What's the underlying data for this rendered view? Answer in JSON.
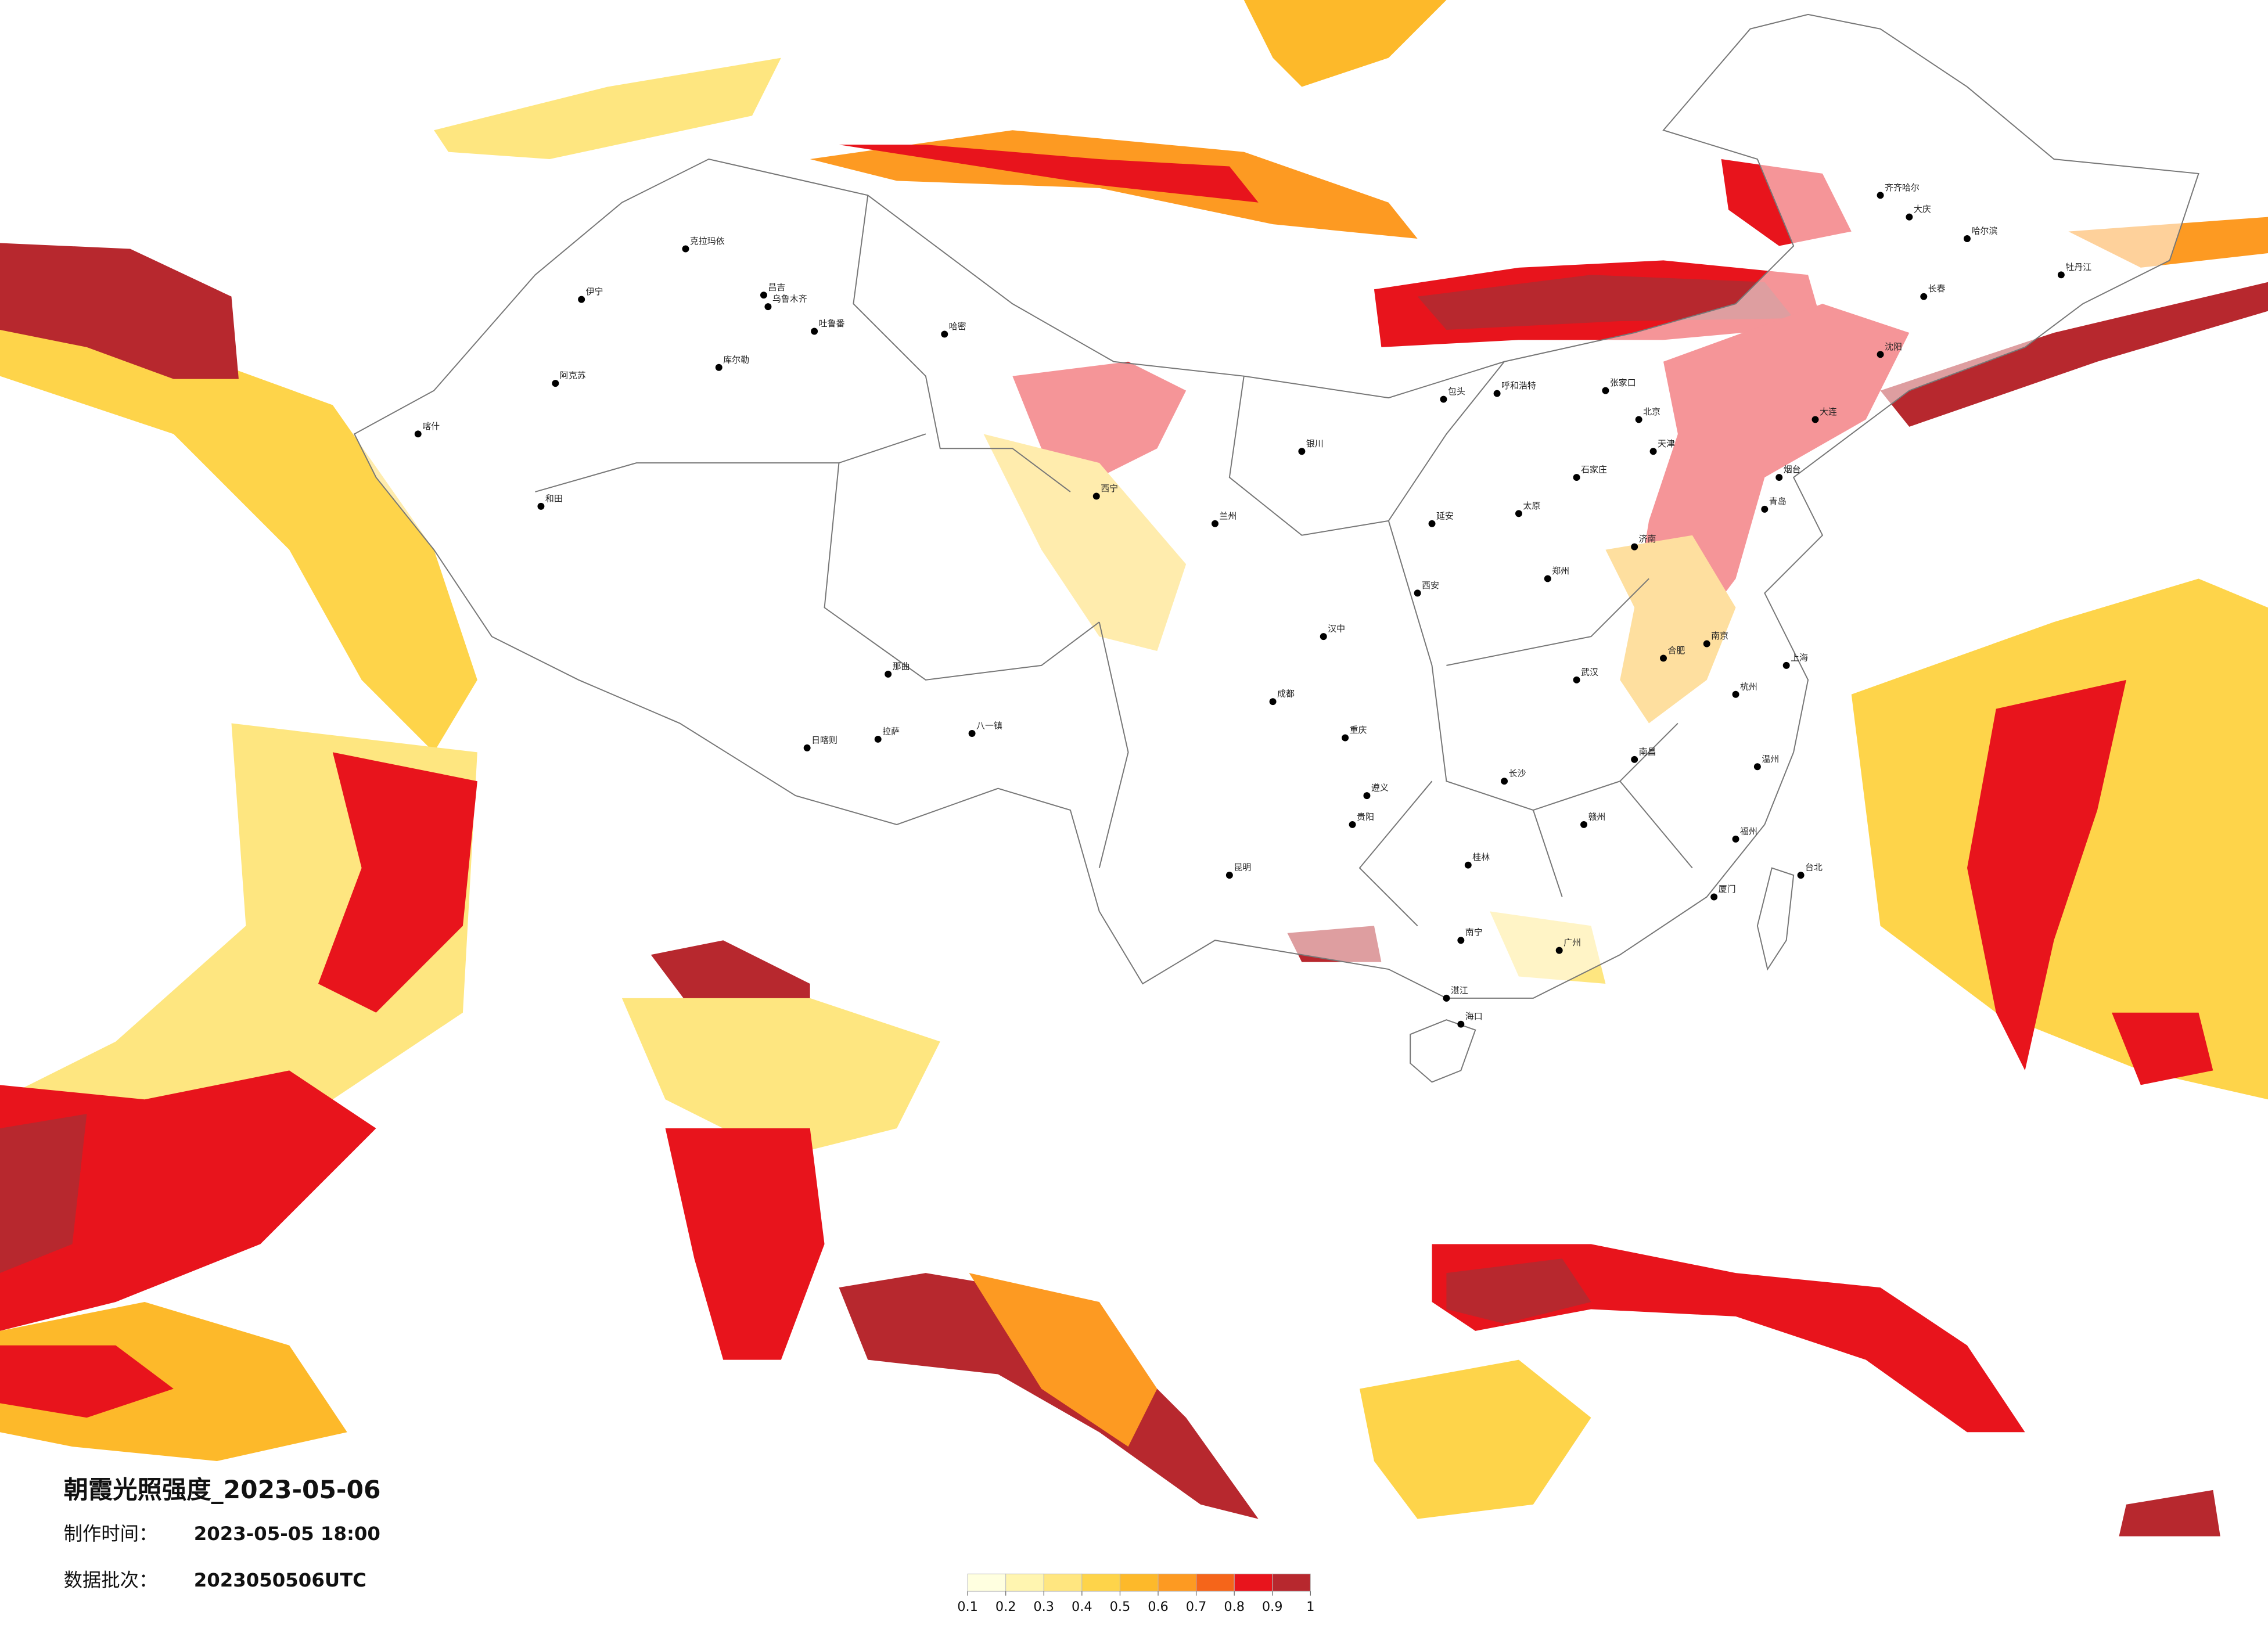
{
  "title": "朝霞光照强度_2023-05-06",
  "made_time": {
    "label": "制作时间：",
    "value": "2023-05-05 18:00"
  },
  "batch": {
    "label": "数据批次：",
    "value": "2023050506UTC"
  },
  "legend": {
    "colors": [
      "#ffffe0",
      "#fff5b0",
      "#ffe680",
      "#fed44a",
      "#fdb92a",
      "#fd9a22",
      "#f5651a",
      "#e8141c",
      "#b7282e"
    ],
    "ticks": [
      0.1,
      0.2,
      0.3,
      0.4,
      0.5,
      0.6,
      0.7,
      0.8,
      0.9,
      1
    ]
  },
  "cities": [
    "克拉玛依",
    "伊宁",
    "昌吉",
    "乌鲁木齐",
    "吐鲁番",
    "哈密",
    "库尔勒",
    "阿克苏",
    "喀什",
    "和田",
    "日喀则",
    "拉萨",
    "八一镇",
    "那曲",
    "西宁",
    "兰州",
    "银川",
    "呼和浩特",
    "包头",
    "北京",
    "天津",
    "石家庄",
    "太原",
    "济南",
    "郑州",
    "西安",
    "成都",
    "重庆",
    "贵阳",
    "昆明",
    "南宁",
    "广州",
    "长沙",
    "武汉",
    "南京",
    "上海",
    "杭州",
    "福州",
    "南昌",
    "合肥",
    "海口",
    "台北",
    "哈尔滨",
    "长春",
    "沈阳",
    "大连",
    "青岛",
    "厦门",
    "齐齐哈尔",
    "大庆",
    "牡丹江",
    "张家口",
    "延安",
    "汉中",
    "遵义",
    "桂林",
    "湛江",
    "赣州",
    "温州",
    "烟台"
  ]
}
